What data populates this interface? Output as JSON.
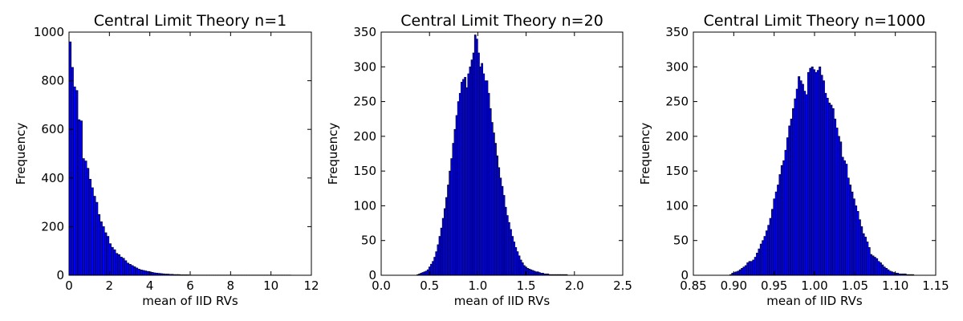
{
  "chart_data": [
    {
      "type": "bar",
      "title": "Central Limit Theory n=1",
      "xlabel": "mean of IID RVs",
      "ylabel": "Frequency",
      "xlim": [
        0,
        12
      ],
      "ylim": [
        0,
        1000
      ],
      "xticks": [
        "0",
        "2",
        "4",
        "6",
        "8",
        "10",
        "12"
      ],
      "yticks": [
        "0",
        "200",
        "400",
        "600",
        "800",
        "1000"
      ],
      "grid": false,
      "bin_start": 0.0,
      "bin_width": 0.11,
      "values": [
        960,
        855,
        775,
        760,
        640,
        635,
        480,
        470,
        440,
        395,
        360,
        325,
        300,
        250,
        220,
        200,
        175,
        160,
        130,
        115,
        105,
        90,
        85,
        75,
        70,
        60,
        50,
        45,
        40,
        35,
        30,
        25,
        22,
        20,
        18,
        16,
        14,
        12,
        10,
        9,
        8,
        7,
        6,
        5,
        5,
        4,
        4,
        3,
        3,
        3,
        2,
        2,
        2,
        2,
        1,
        1,
        1,
        1,
        1,
        1,
        1,
        1,
        1,
        1,
        1,
        1,
        1,
        1,
        1,
        1,
        1,
        1,
        1,
        1,
        1,
        1,
        1,
        1,
        1,
        1,
        1,
        1,
        1,
        1,
        1,
        1,
        1,
        1,
        1,
        1,
        1,
        1,
        1,
        1,
        1,
        1,
        1,
        1,
        1,
        1
      ]
    },
    {
      "type": "bar",
      "title": "Central Limit Theory n=20",
      "xlabel": "mean of IID RVs",
      "ylabel": "Frequency",
      "xlim": [
        0.0,
        2.5
      ],
      "ylim": [
        0,
        350
      ],
      "xticks": [
        "0.0",
        "0.5",
        "1.0",
        "1.5",
        "2.0",
        "2.5"
      ],
      "yticks": [
        "0",
        "50",
        "100",
        "150",
        "200",
        "250",
        "300",
        "350"
      ],
      "grid": false,
      "bin_start": 0.37,
      "bin_width": 0.0175,
      "values": [
        1,
        2,
        3,
        4,
        5,
        6,
        8,
        12,
        16,
        20,
        26,
        34,
        44,
        56,
        68,
        82,
        96,
        112,
        130,
        150,
        168,
        190,
        210,
        230,
        250,
        262,
        278,
        282,
        285,
        270,
        290,
        300,
        310,
        320,
        346,
        340,
        320,
        300,
        305,
        290,
        280,
        280,
        262,
        240,
        220,
        205,
        190,
        172,
        155,
        140,
        128,
        115,
        98,
        86,
        76,
        66,
        56,
        48,
        40,
        34,
        28,
        22,
        18,
        14,
        12,
        10,
        9,
        8,
        7,
        6,
        5,
        5,
        4,
        3,
        3,
        2,
        2,
        2,
        1,
        1,
        1,
        1,
        1,
        1,
        1,
        1,
        1,
        1,
        1
      ]
    },
    {
      "type": "bar",
      "title": "Central Limit Theory n=1000",
      "xlabel": "mean of IID RVs",
      "ylabel": "Frequency",
      "xlim": [
        0.85,
        1.15
      ],
      "ylim": [
        0,
        350
      ],
      "xticks": [
        "0.85",
        "0.90",
        "0.95",
        "1.00",
        "1.05",
        "1.10",
        "1.15"
      ],
      "yticks": [
        "0",
        "50",
        "100",
        "150",
        "200",
        "250",
        "300",
        "350"
      ],
      "grid": false,
      "bin_start": 0.895,
      "bin_width": 0.00235,
      "values": [
        1,
        3,
        4,
        5,
        6,
        8,
        10,
        12,
        14,
        18,
        20,
        20,
        22,
        26,
        32,
        38,
        45,
        50,
        56,
        64,
        72,
        82,
        95,
        110,
        120,
        130,
        145,
        158,
        165,
        180,
        198,
        215,
        225,
        240,
        254,
        268,
        286,
        280,
        275,
        265,
        260,
        292,
        298,
        300,
        296,
        292,
        295,
        300,
        288,
        280,
        262,
        255,
        248,
        245,
        240,
        225,
        212,
        200,
        192,
        170,
        165,
        160,
        140,
        130,
        120,
        110,
        100,
        92,
        80,
        70,
        60,
        55,
        48,
        40,
        30,
        28,
        26,
        24,
        20,
        18,
        15,
        12,
        10,
        8,
        6,
        5,
        4,
        3,
        3,
        2,
        2,
        2,
        2,
        1,
        1,
        1,
        1
      ]
    }
  ]
}
